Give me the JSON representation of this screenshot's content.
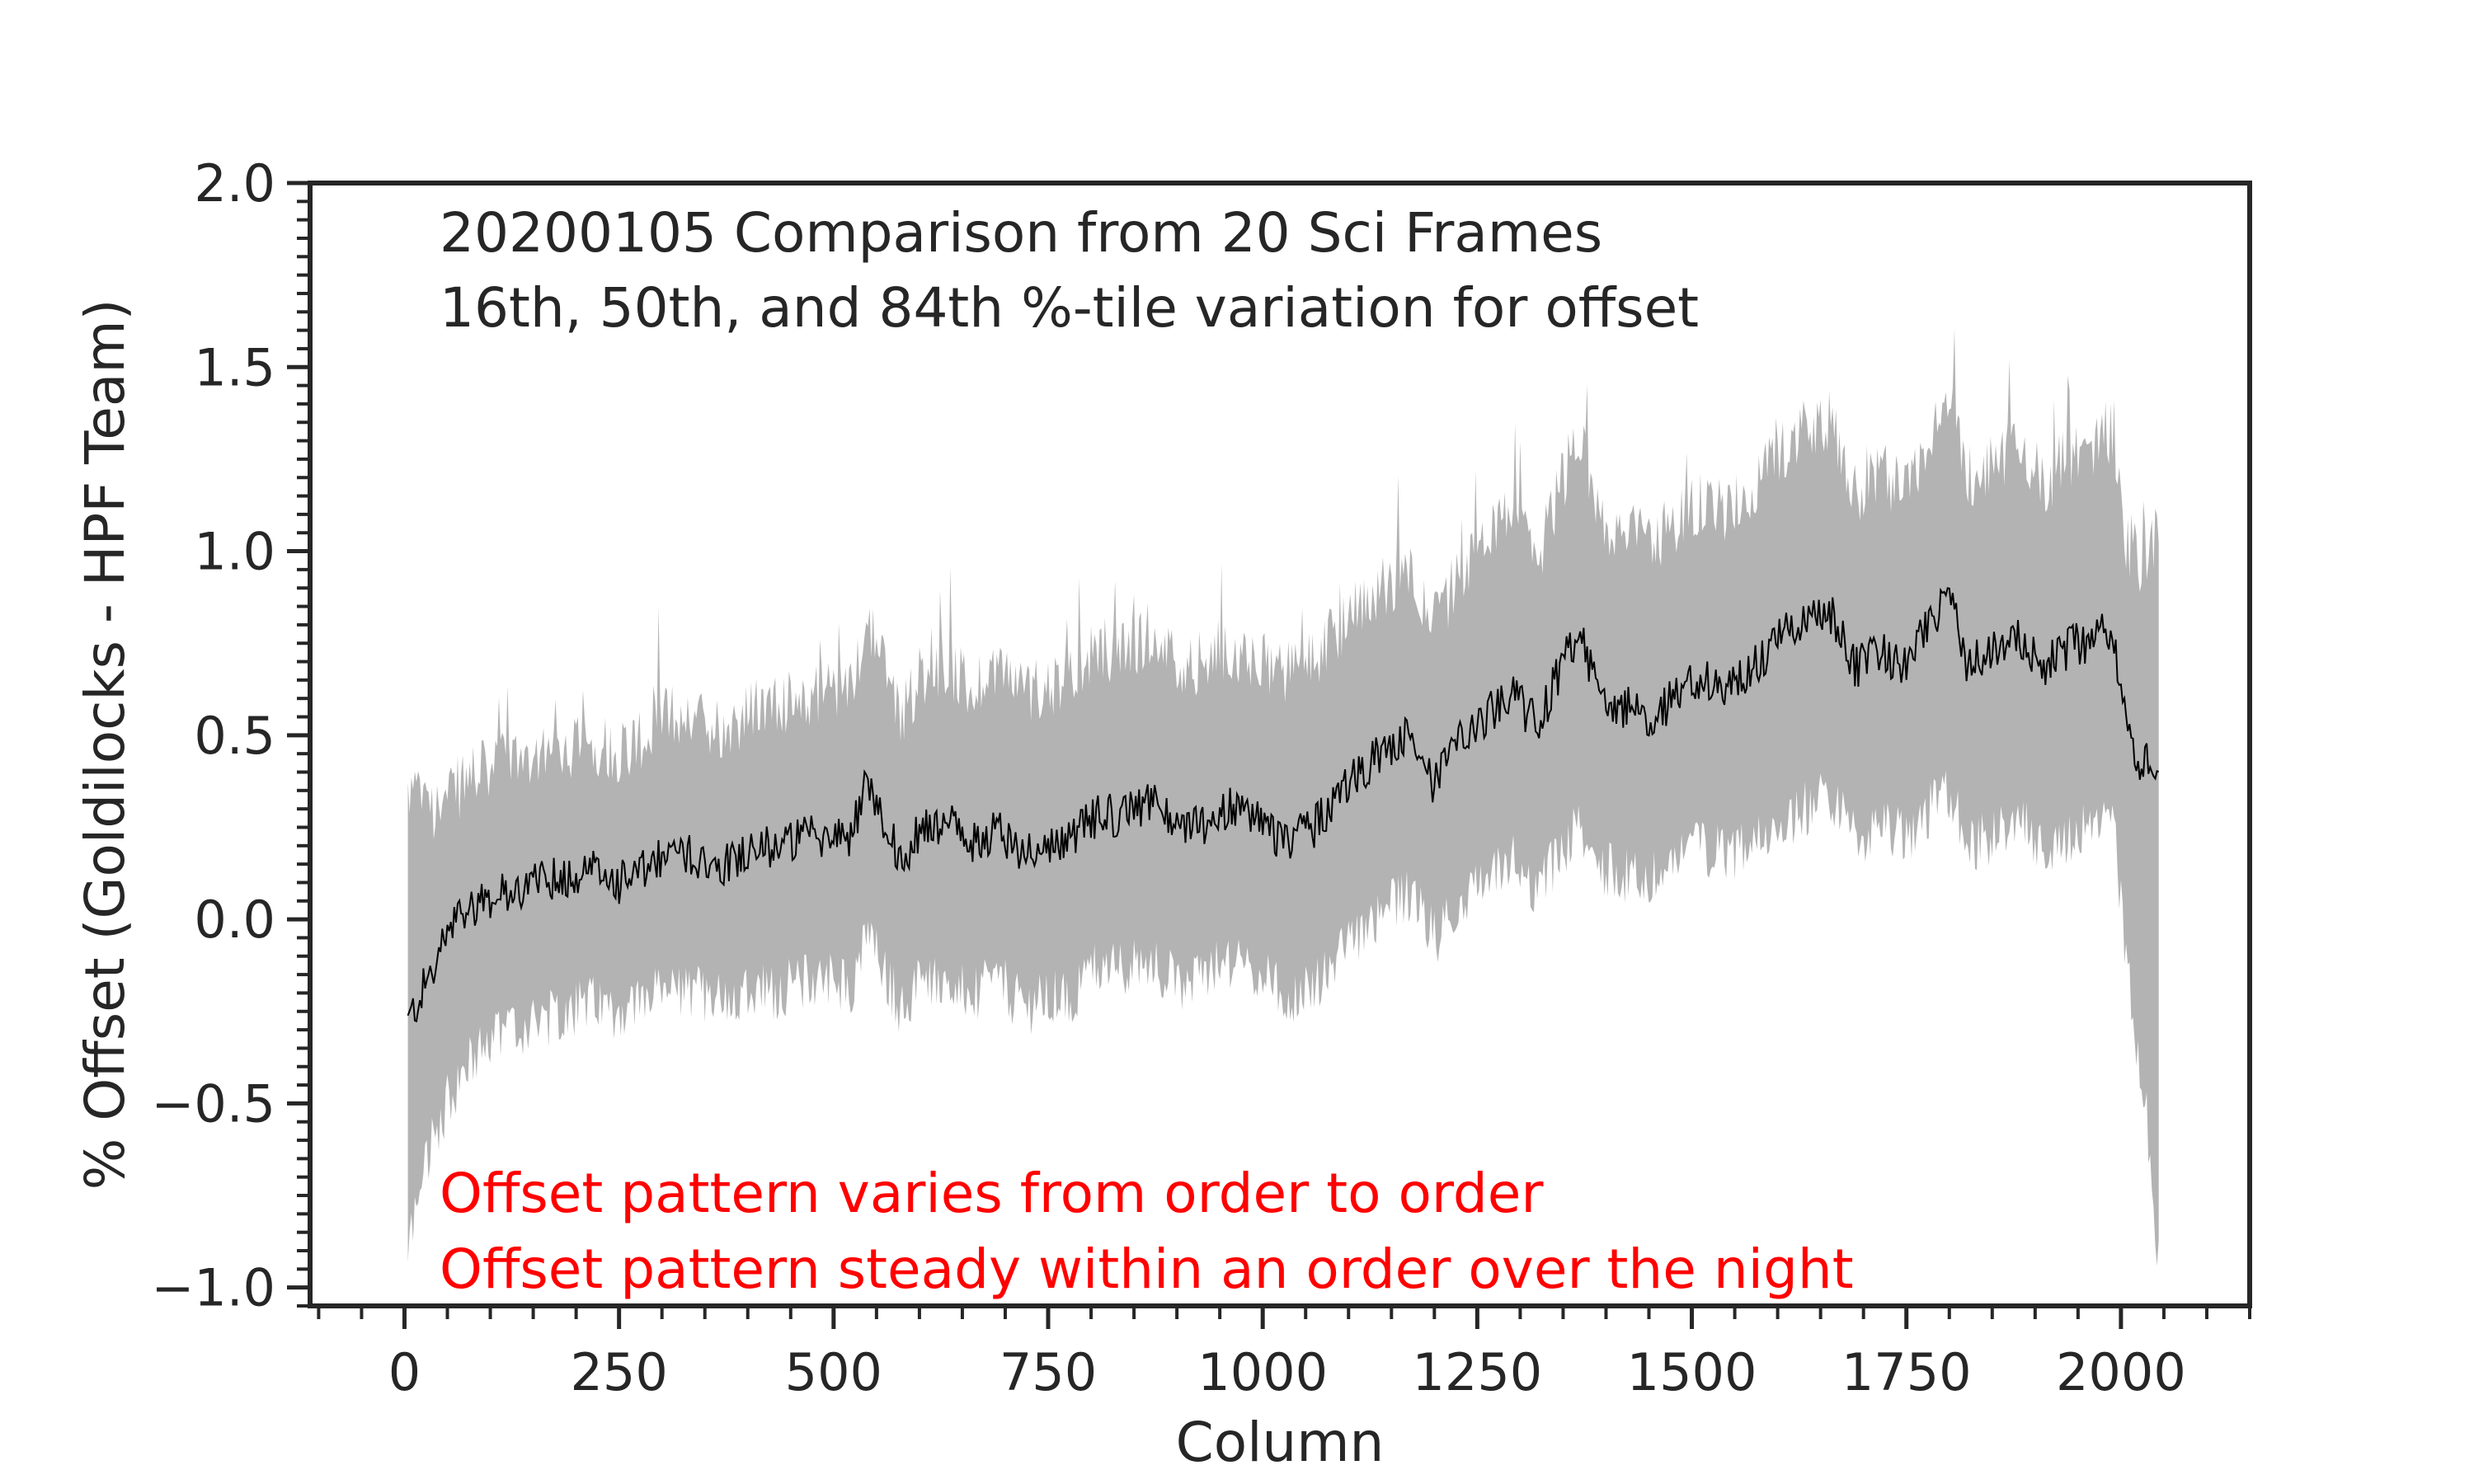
{
  "chart_data": {
    "type": "line",
    "title": "",
    "xlabel": "Column",
    "ylabel": "% Offset (Goldilocks - HPF Team)",
    "xlim": [
      -110,
      2150
    ],
    "ylim": [
      -1.05,
      2.0
    ],
    "x_major_ticks": [
      0,
      250,
      500,
      750,
      1000,
      1250,
      1500,
      1750,
      2000
    ],
    "x_tick_labels": [
      "0",
      "250",
      "500",
      "750",
      "1000",
      "1250",
      "1500",
      "1750",
      "2000"
    ],
    "x_minor_step": 50,
    "y_major_ticks": [
      -1.0,
      -0.5,
      0.0,
      0.5,
      1.0,
      1.5,
      2.0
    ],
    "y_tick_labels": [
      "−1.0",
      "−0.5",
      "0.0",
      "0.5",
      "1.0",
      "1.5",
      "2.0"
    ],
    "y_minor_step": 0.05,
    "grid": false,
    "band_color": "#b3b3b3",
    "line_color": "#000000",
    "note_color": "#ff0000",
    "text_color": "#262626",
    "annotations": {
      "line1": "20200105 Comparison from 20 Sci Frames",
      "line2": "16th, 50th, and 84th %-tile variation for offset",
      "red1": "Offset pattern varies from order to order",
      "red2": "Offset pattern steady within an order over the night"
    },
    "series": [
      {
        "name": "50th percentile",
        "x": [
          4,
          20,
          40,
          60,
          80,
          100,
          130,
          160,
          190,
          220,
          250,
          280,
          310,
          340,
          370,
          400,
          430,
          460,
          490,
          520,
          540,
          560,
          580,
          600,
          630,
          660,
          690,
          720,
          750,
          780,
          810,
          840,
          870,
          900,
          930,
          960,
          990,
          1020,
          1050,
          1080,
          1110,
          1140,
          1170,
          1200,
          1230,
          1260,
          1290,
          1320,
          1350,
          1370,
          1390,
          1420,
          1450,
          1480,
          1510,
          1540,
          1570,
          1600,
          1630,
          1660,
          1690,
          1720,
          1750,
          1780,
          1800,
          1820,
          1850,
          1880,
          1910,
          1940,
          1970,
          1990,
          2000,
          2015,
          2030,
          2044
        ],
        "values": [
          -0.28,
          -0.2,
          -0.1,
          0.0,
          0.04,
          0.06,
          0.08,
          0.1,
          0.12,
          0.13,
          0.1,
          0.13,
          0.18,
          0.17,
          0.15,
          0.19,
          0.2,
          0.22,
          0.23,
          0.22,
          0.38,
          0.26,
          0.15,
          0.24,
          0.27,
          0.2,
          0.25,
          0.18,
          0.2,
          0.22,
          0.29,
          0.28,
          0.33,
          0.24,
          0.26,
          0.3,
          0.28,
          0.22,
          0.23,
          0.3,
          0.4,
          0.45,
          0.5,
          0.36,
          0.48,
          0.55,
          0.62,
          0.52,
          0.7,
          0.76,
          0.62,
          0.58,
          0.55,
          0.6,
          0.66,
          0.63,
          0.68,
          0.76,
          0.8,
          0.84,
          0.68,
          0.72,
          0.68,
          0.82,
          0.88,
          0.7,
          0.72,
          0.78,
          0.68,
          0.74,
          0.76,
          0.8,
          0.6,
          0.42,
          0.45,
          0.4
        ]
      },
      {
        "name": "16th percentile",
        "x": [
          4,
          20,
          40,
          60,
          80,
          100,
          130,
          160,
          190,
          220,
          250,
          280,
          310,
          340,
          370,
          400,
          430,
          460,
          490,
          520,
          540,
          560,
          580,
          600,
          630,
          660,
          690,
          720,
          750,
          780,
          810,
          840,
          870,
          900,
          930,
          960,
          990,
          1020,
          1050,
          1080,
          1110,
          1140,
          1170,
          1200,
          1230,
          1260,
          1290,
          1320,
          1350,
          1370,
          1390,
          1420,
          1450,
          1480,
          1510,
          1540,
          1570,
          1600,
          1630,
          1660,
          1690,
          1720,
          1750,
          1780,
          1800,
          1820,
          1850,
          1880,
          1910,
          1940,
          1970,
          1990,
          2000,
          2015,
          2030,
          2044
        ],
        "values": [
          -0.9,
          -0.7,
          -0.55,
          -0.45,
          -0.38,
          -0.33,
          -0.3,
          -0.28,
          -0.25,
          -0.23,
          -0.25,
          -0.22,
          -0.2,
          -0.2,
          -0.22,
          -0.18,
          -0.2,
          -0.17,
          -0.16,
          -0.18,
          -0.05,
          -0.15,
          -0.25,
          -0.17,
          -0.15,
          -0.22,
          -0.16,
          -0.24,
          -0.22,
          -0.2,
          -0.12,
          -0.14,
          -0.1,
          -0.18,
          -0.15,
          -0.12,
          -0.14,
          -0.2,
          -0.2,
          -0.12,
          -0.05,
          0.02,
          0.06,
          -0.05,
          0.05,
          0.1,
          0.16,
          0.08,
          0.2,
          0.24,
          0.15,
          0.12,
          0.1,
          0.15,
          0.2,
          0.17,
          0.2,
          0.25,
          0.3,
          0.34,
          0.22,
          0.26,
          0.22,
          0.3,
          0.35,
          0.2,
          0.22,
          0.28,
          0.18,
          0.23,
          0.25,
          0.28,
          0.05,
          -0.3,
          -0.55,
          -0.95
        ]
      },
      {
        "name": "84th percentile",
        "x": [
          4,
          20,
          40,
          60,
          80,
          100,
          130,
          160,
          190,
          220,
          250,
          280,
          310,
          340,
          370,
          400,
          430,
          460,
          490,
          520,
          540,
          560,
          580,
          600,
          630,
          660,
          690,
          720,
          750,
          780,
          810,
          840,
          870,
          900,
          930,
          960,
          990,
          1020,
          1050,
          1080,
          1110,
          1140,
          1170,
          1200,
          1230,
          1260,
          1290,
          1320,
          1350,
          1370,
          1390,
          1420,
          1450,
          1480,
          1510,
          1540,
          1570,
          1600,
          1630,
          1660,
          1690,
          1720,
          1750,
          1780,
          1800,
          1820,
          1850,
          1880,
          1910,
          1940,
          1970,
          1990,
          2000,
          2015,
          2030,
          2044
        ],
        "values": [
          0.35,
          0.32,
          0.3,
          0.35,
          0.4,
          0.4,
          0.44,
          0.46,
          0.47,
          0.48,
          0.46,
          0.5,
          0.56,
          0.55,
          0.52,
          0.56,
          0.58,
          0.6,
          0.62,
          0.62,
          0.82,
          0.68,
          0.56,
          0.66,
          0.7,
          0.62,
          0.7,
          0.62,
          0.64,
          0.66,
          0.74,
          0.72,
          0.78,
          0.68,
          0.7,
          0.74,
          0.72,
          0.66,
          0.68,
          0.76,
          0.86,
          0.9,
          0.96,
          0.8,
          0.94,
          1.02,
          1.1,
          0.98,
          1.2,
          1.32,
          1.1,
          1.05,
          1.02,
          1.08,
          1.14,
          1.1,
          1.16,
          1.26,
          1.32,
          1.36,
          1.15,
          1.2,
          1.16,
          1.34,
          1.42,
          1.2,
          1.24,
          1.3,
          1.18,
          1.26,
          1.28,
          1.32,
          1.1,
          0.95,
          1.0,
          1.05
        ]
      }
    ]
  }
}
